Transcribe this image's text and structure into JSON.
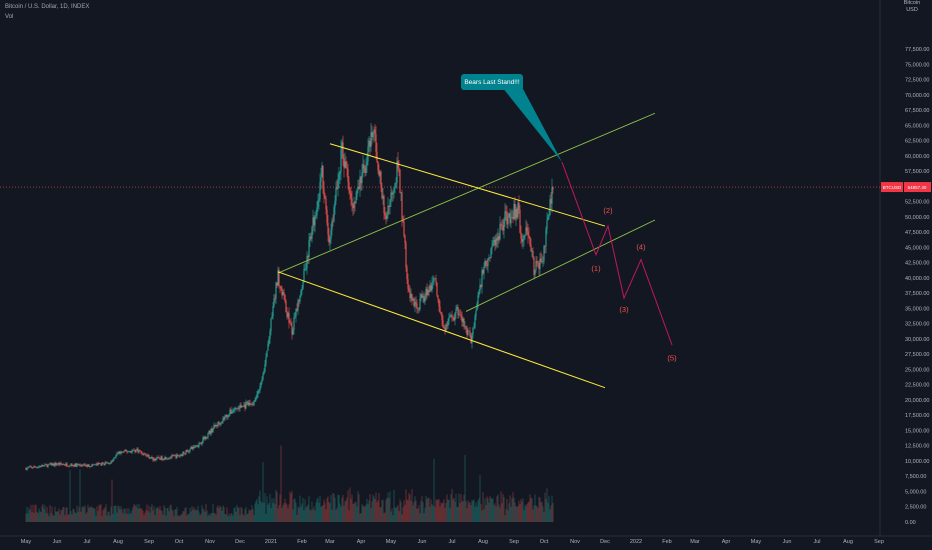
{
  "header": {
    "symbol_title": "Bitcoin / U.S. Dollar, 1D, INDEX",
    "volume_label": "Vol"
  },
  "price_axis": {
    "currency_header": "Bitcoin\nUSD",
    "ticks": [
      77500,
      75000,
      72500,
      70000,
      67500,
      65000,
      62500,
      60000,
      57500,
      55000,
      52500,
      50000,
      47500,
      45000,
      42500,
      40000,
      37500,
      35000,
      32500,
      30000,
      27500,
      25000,
      22500,
      20000,
      17500,
      15000,
      12500,
      10000,
      7500,
      5000,
      2500,
      0
    ],
    "current_price_tag": {
      "label": "BTCUSD",
      "value": "54857.40",
      "color": "#f23645"
    }
  },
  "colors": {
    "background": "#131722",
    "up": "#26a69a",
    "down": "#ef5350",
    "channel_upper": "#8bc34a",
    "channel_lower": "#ffeb3b",
    "projection": "#c2185b",
    "callout": "#00838f"
  },
  "chart_data": {
    "type": "candlestick",
    "title": "Bitcoin / U.S. Dollar, 1D, INDEX",
    "x_ticks": [
      "May",
      "Jun",
      "Jul",
      "Aug",
      "Sep",
      "Oct",
      "Nov",
      "Dec",
      "2021",
      "Feb",
      "Mar",
      "Apr",
      "May",
      "Jun",
      "Jul",
      "Aug",
      "Sep",
      "Oct",
      "Nov",
      "Dec",
      "2022",
      "Feb",
      "Mar",
      "Apr",
      "May",
      "Jun",
      "Jul",
      "Aug",
      "Sep"
    ],
    "ylim": [
      0,
      80000
    ],
    "price_path": [
      [
        "2020-05-01",
        8800
      ],
      [
        "2020-06-01",
        9500
      ],
      [
        "2020-07-01",
        9200
      ],
      [
        "2020-07-25",
        9700
      ],
      [
        "2020-08-01",
        11300
      ],
      [
        "2020-08-20",
        11800
      ],
      [
        "2020-09-05",
        10300
      ],
      [
        "2020-10-01",
        10800
      ],
      [
        "2020-10-21",
        12800
      ],
      [
        "2020-11-05",
        15500
      ],
      [
        "2020-11-25",
        18500
      ],
      [
        "2020-12-15",
        19500
      ],
      [
        "2020-12-25",
        24500
      ],
      [
        "2021-01-08",
        40500
      ],
      [
        "2021-01-22",
        31000
      ],
      [
        "2021-02-08",
        45000
      ],
      [
        "2021-02-21",
        57000
      ],
      [
        "2021-02-28",
        45500
      ],
      [
        "2021-03-13",
        61000
      ],
      [
        "2021-03-25",
        52000
      ],
      [
        "2021-04-14",
        64000
      ],
      [
        "2021-04-25",
        49500
      ],
      [
        "2021-05-08",
        58500
      ],
      [
        "2021-05-19",
        37000
      ],
      [
        "2021-05-28",
        35500
      ],
      [
        "2021-06-14",
        40000
      ],
      [
        "2021-06-22",
        31500
      ],
      [
        "2021-07-07",
        34500
      ],
      [
        "2021-07-20",
        29800
      ],
      [
        "2021-08-01",
        41500
      ],
      [
        "2021-08-22",
        49500
      ],
      [
        "2021-09-06",
        51500
      ],
      [
        "2021-09-08",
        46000
      ],
      [
        "2021-09-16",
        48000
      ],
      [
        "2021-09-21",
        41000
      ],
      [
        "2021-09-30",
        43800
      ],
      [
        "2021-10-10",
        54900
      ]
    ],
    "volume_scale_ticks": [
      10000,
      7500,
      5000,
      2500,
      0
    ],
    "overlays": {
      "upper_channel_line": [
        [
          "2021-01-08",
          40800
        ],
        [
          "2022-01-20",
          67000
        ]
      ],
      "upper_channel_parallel": [
        [
          "2021-07-15",
          34500
        ],
        [
          "2022-01-20",
          49500
        ]
      ],
      "descending_channel_top": [
        [
          "2021-03-01",
          62000
        ],
        [
          "2021-12-01",
          48500
        ]
      ],
      "descending_channel_bottom": [
        [
          "2021-01-08",
          41000
        ],
        [
          "2021-12-01",
          22000
        ]
      ],
      "projected_path": [
        [
          "2021-10-19",
          59000
        ],
        [
          "2021-11-22",
          43800
        ],
        [
          "2021-12-04",
          48500
        ],
        [
          "2021-12-20",
          36700
        ],
        [
          "2022-01-06",
          43000
        ],
        [
          "2022-02-06",
          29000
        ]
      ],
      "wave_labels": [
        {
          "text": "(1)",
          "date": "2021-11-22",
          "price": 41500
        },
        {
          "text": "(2)",
          "date": "2021-12-04",
          "price": 51000
        },
        {
          "text": "(3)",
          "date": "2021-12-20",
          "price": 34700
        },
        {
          "text": "(4)",
          "date": "2022-01-06",
          "price": 45000
        },
        {
          "text": "(5)",
          "date": "2022-02-06",
          "price": 26800
        }
      ],
      "callout": {
        "text": "Bears Last Stand!!!",
        "points_to": [
          "2021-10-19",
          59000
        ]
      }
    }
  }
}
